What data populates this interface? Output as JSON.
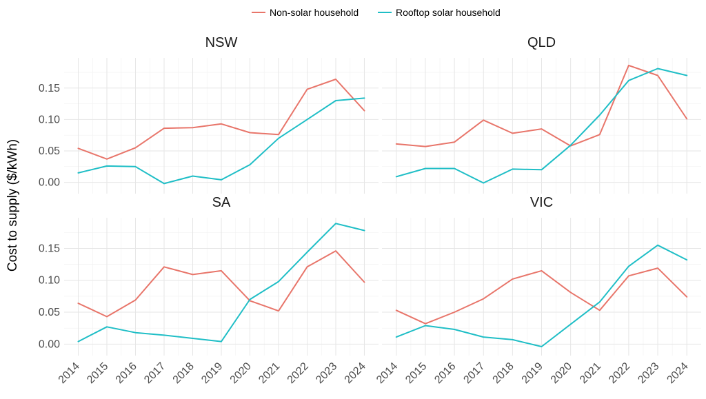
{
  "chart_data": {
    "type": "line",
    "ylabel": "Cost to supply ($/kWh)",
    "xlabel": "",
    "legend_position": "top",
    "x": [
      "2014",
      "2015",
      "2016",
      "2017",
      "2018",
      "2019",
      "2020",
      "2021",
      "2022",
      "2023",
      "2024"
    ],
    "ylim": [
      -0.018,
      0.198
    ],
    "yticks": [
      0.0,
      0.05,
      0.1,
      0.15
    ],
    "ytick_labels": [
      "0.00",
      "0.05",
      "0.10",
      "0.15"
    ],
    "legend": [
      {
        "name": "Non-solar household",
        "color": "#e8756a"
      },
      {
        "name": "Rooftop solar household",
        "color": "#1fbec6"
      }
    ],
    "panels": [
      {
        "title": "NSW",
        "series": [
          {
            "name": "Non-solar household",
            "values": [
              0.054,
              0.037,
              0.055,
              0.086,
              0.087,
              0.093,
              0.079,
              0.076,
              0.148,
              0.164,
              0.114
            ]
          },
          {
            "name": "Rooftop solar household",
            "values": [
              0.015,
              0.026,
              0.025,
              -0.002,
              0.01,
              0.004,
              0.028,
              0.07,
              0.1,
              0.13,
              0.134
            ]
          }
        ]
      },
      {
        "title": "QLD",
        "series": [
          {
            "name": "Non-solar household",
            "values": [
              0.061,
              0.057,
              0.064,
              0.099,
              0.078,
              0.085,
              0.058,
              0.076,
              0.186,
              0.17,
              0.101
            ]
          },
          {
            "name": "Rooftop solar household",
            "values": [
              0.009,
              0.022,
              0.022,
              -0.001,
              0.021,
              0.02,
              0.059,
              0.107,
              0.162,
              0.181,
              0.17
            ]
          }
        ]
      },
      {
        "title": "SA",
        "series": [
          {
            "name": "Non-solar household",
            "values": [
              0.064,
              0.043,
              0.069,
              0.121,
              0.109,
              0.115,
              0.068,
              0.052,
              0.121,
              0.146,
              0.097
            ]
          },
          {
            "name": "Rooftop solar household",
            "values": [
              0.004,
              0.027,
              0.018,
              0.014,
              0.009,
              0.004,
              0.07,
              0.098,
              0.144,
              0.189,
              0.178
            ]
          }
        ]
      },
      {
        "title": "VIC",
        "series": [
          {
            "name": "Non-solar household",
            "values": [
              0.053,
              0.032,
              0.05,
              0.071,
              0.102,
              0.115,
              0.081,
              0.053,
              0.107,
              0.119,
              0.074
            ]
          },
          {
            "name": "Rooftop solar household",
            "values": [
              0.011,
              0.029,
              0.023,
              0.011,
              0.007,
              -0.004,
              0.031,
              0.066,
              0.122,
              0.155,
              0.132
            ]
          }
        ]
      }
    ]
  }
}
